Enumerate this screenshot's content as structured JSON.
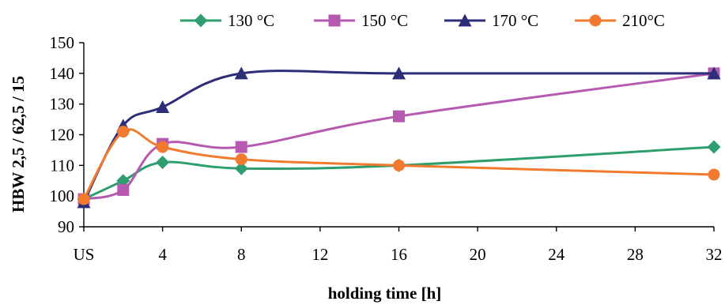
{
  "chart_data": {
    "type": "line",
    "title": "",
    "xlabel": "holding time [h]",
    "ylabel": "HBW 2,5 / 62,5 / 15",
    "xlim": [
      0,
      32
    ],
    "ylim": [
      90,
      150
    ],
    "x_ticks": [
      {
        "value": 0,
        "label": "US"
      },
      {
        "value": 4,
        "label": "4"
      },
      {
        "value": 8,
        "label": "8"
      },
      {
        "value": 12,
        "label": "12"
      },
      {
        "value": 16,
        "label": "16"
      },
      {
        "value": 20,
        "label": "20"
      },
      {
        "value": 24,
        "label": "24"
      },
      {
        "value": 28,
        "label": "28"
      },
      {
        "value": 32,
        "label": "32"
      }
    ],
    "y_ticks": [
      90,
      100,
      110,
      120,
      130,
      140,
      150
    ],
    "grid": false,
    "legend_position": "top",
    "series": [
      {
        "name": "130 °C",
        "color": "#2e9e6e",
        "marker": "diamond",
        "x": [
          0,
          2,
          4,
          8,
          16,
          32
        ],
        "y": [
          99,
          105,
          111,
          109,
          110,
          116
        ]
      },
      {
        "name": "150 °C",
        "color": "#b55ab0",
        "marker": "square",
        "x": [
          0,
          2,
          4,
          8,
          16,
          32
        ],
        "y": [
          99,
          102,
          117,
          116,
          126,
          140
        ]
      },
      {
        "name": "170 °C",
        "color": "#2e2d7a",
        "marker": "triangle",
        "x": [
          0,
          2,
          4,
          8,
          16,
          32
        ],
        "y": [
          98,
          123,
          129,
          140,
          140,
          140
        ]
      },
      {
        "name": "210°C",
        "color": "#f07a2e",
        "marker": "circle",
        "x": [
          0,
          2,
          4,
          8,
          16,
          32
        ],
        "y": [
          99,
          121,
          116,
          112,
          110,
          107
        ]
      }
    ]
  }
}
